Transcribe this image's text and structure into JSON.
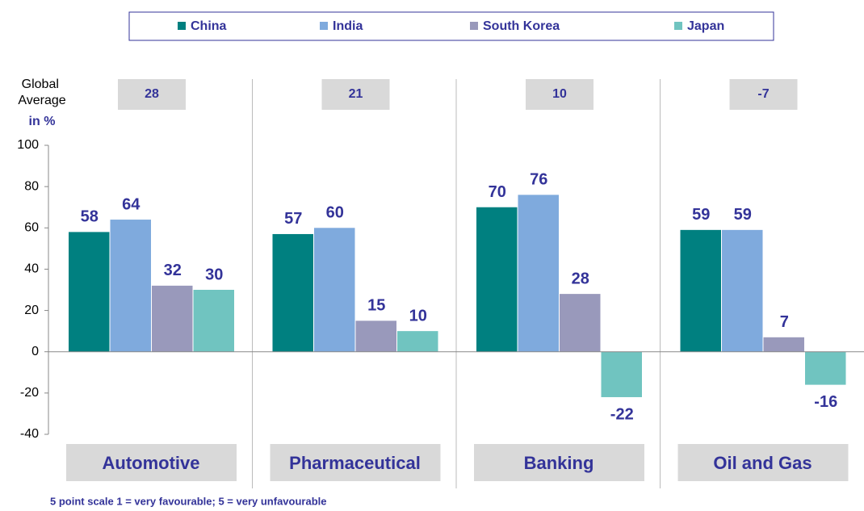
{
  "chart_data": {
    "type": "bar",
    "categories": [
      "Automotive",
      "Pharmaceutical",
      "Banking",
      "Oil and Gas"
    ],
    "series": [
      {
        "name": "China",
        "color": "#008080",
        "values": [
          58,
          57,
          70,
          59
        ]
      },
      {
        "name": "India",
        "color": "#7FAADD",
        "values": [
          64,
          60,
          76,
          59
        ]
      },
      {
        "name": "South Korea",
        "color": "#9999BB",
        "values": [
          32,
          15,
          28,
          7
        ]
      },
      {
        "name": "Japan",
        "color": "#70C4C0",
        "values": [
          30,
          10,
          -22,
          -16
        ]
      }
    ],
    "global_average_label": "Global Average",
    "unit_label": "in %",
    "global_averages": [
      28,
      21,
      10,
      -7
    ],
    "ylim": [
      -40,
      100
    ],
    "yticks": [
      -40,
      -20,
      0,
      20,
      40,
      60,
      80,
      100
    ],
    "legend": "top",
    "footnote": "5 point scale 1 = very favourable; 5 = very unfavourable"
  }
}
